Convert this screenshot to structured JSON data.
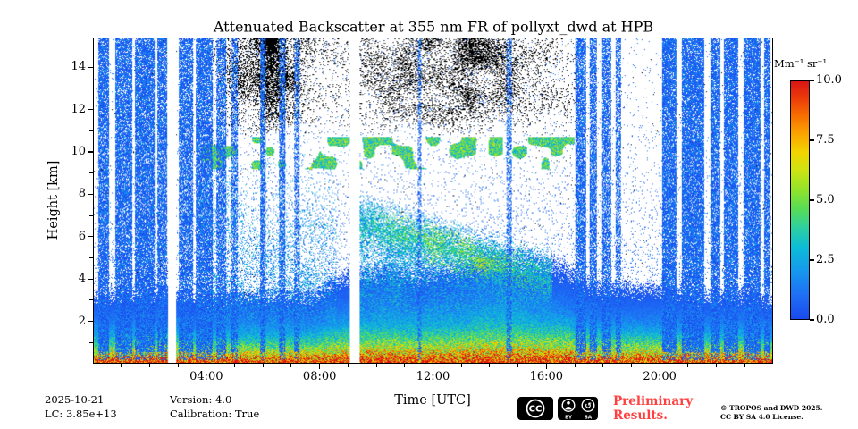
{
  "title": "Attenuated Backscatter at 355 nm FR of pollyxt_dwd at HPB",
  "axes": {
    "xlabel": "Time [UTC]",
    "ylabel": "Height [km]",
    "x_ticks": [
      "04:00",
      "08:00",
      "12:00",
      "16:00",
      "20:00"
    ],
    "y_ticks": [
      "2",
      "4",
      "6",
      "8",
      "10",
      "12",
      "14"
    ]
  },
  "colorbar": {
    "label": "Mm⁻¹ sr⁻¹",
    "ticks": [
      "10.0",
      "7.5",
      "5.0",
      "2.5",
      "0.0"
    ]
  },
  "footer": {
    "date": "2025-10-21",
    "lc": "LC: 3.85e+13",
    "version": "Version: 4.0",
    "calibration": "Calibration: True",
    "preliminary_line1": "Preliminary",
    "preliminary_line2": "Results.",
    "copyright_line1": "© TROPOS and DWD 2025.",
    "copyright_line2": "CC BY SA 4.0 License.",
    "cc_labels": {
      "cc": "CC",
      "by": "BY",
      "sa": "SA",
      "sa_arrow": "↺"
    }
  },
  "colors": {
    "preliminary_red": "#ff4040",
    "axis_black": "#000000",
    "background": "#ffffff"
  },
  "chart_data": {
    "type": "heatmap",
    "title": "Attenuated Backscatter at 355 nm FR of pollyxt_dwd at HPB",
    "x_axis": {
      "label": "Time [UTC]",
      "range_hours": [
        0,
        24
      ],
      "major_tick_hours": [
        4,
        8,
        12,
        16,
        20
      ]
    },
    "y_axis": {
      "label": "Height [km]",
      "range_km": [
        0,
        15.4
      ],
      "major_ticks_km": [
        2,
        4,
        6,
        8,
        10,
        12,
        14
      ]
    },
    "colorbar": {
      "label": "Mm⁻¹ sr⁻¹",
      "units": "Mm-1 sr-1",
      "range": [
        0,
        10
      ],
      "tick_values": [
        10.0,
        7.5,
        5.0,
        2.5,
        0.0
      ]
    },
    "colormap_stops": [
      [
        0,
        "#1a49ee"
      ],
      [
        0.1,
        "#1e6ff5"
      ],
      [
        0.2,
        "#1697ef"
      ],
      [
        0.3,
        "#0cbbd8"
      ],
      [
        0.38,
        "#2bcfa4"
      ],
      [
        0.46,
        "#55dc58"
      ],
      [
        0.54,
        "#8ee32c"
      ],
      [
        0.62,
        "#c9e414"
      ],
      [
        0.7,
        "#f2d500"
      ],
      [
        0.78,
        "#fba301"
      ],
      [
        0.86,
        "#f66b00"
      ],
      [
        0.93,
        "#ec3a0a"
      ],
      [
        1,
        "#d91515"
      ]
    ],
    "features": {
      "surface_layer": {
        "height_km": [
          0,
          1
        ],
        "value_range": [
          4,
          10
        ],
        "note": "strong yellow-orange backscatter near ground all day"
      },
      "boundary_layer": {
        "height_km": [
          1,
          3.5
        ],
        "value_range": [
          1,
          4
        ],
        "note": "green/cyan aerosol layer, deepest around midday"
      },
      "elevated_plume": {
        "t_hours": [
          9.3,
          16
        ],
        "height_km": [
          4.2,
          7.3
        ],
        "value_range": [
          2,
          8
        ],
        "note": "descending lofted aerosol layer with yellow-orange core"
      },
      "cloud_band_10km": {
        "t_hours": [
          3.8,
          17
        ],
        "height_km": [
          9.2,
          10.7
        ],
        "note": "broken green/yellow cloud returns near 10 km"
      },
      "dark_noise_band": {
        "t_hours": [
          4.2,
          17.2
        ],
        "height_km": [
          11,
          15.4
        ],
        "note": "dense black daytime background-noise speckle at top"
      },
      "data_gaps_hours": [
        [
          2.62,
          2.9
        ],
        [
          9.05,
          9.4
        ]
      ],
      "rain_cloud_columns": [
        [
          0.15,
          0.55,
          0.9
        ],
        [
          0.75,
          1.35,
          0.88
        ],
        [
          1.45,
          2.15,
          0.9
        ],
        [
          2.25,
          2.6,
          0.85
        ],
        [
          3.0,
          3.5,
          0.85
        ],
        [
          3.6,
          4.2,
          0.88
        ],
        [
          4.35,
          4.7,
          0.75
        ],
        [
          4.85,
          5.1,
          0.7
        ],
        [
          5.9,
          6.08,
          0.8
        ],
        [
          6.55,
          6.78,
          0.75
        ],
        [
          7.1,
          7.28,
          0.65
        ],
        [
          11.45,
          11.58,
          0.55
        ],
        [
          14.6,
          14.8,
          0.6
        ],
        [
          17.05,
          17.4,
          0.85
        ],
        [
          17.55,
          17.8,
          0.8
        ],
        [
          18.0,
          18.3,
          0.8
        ],
        [
          18.45,
          18.65,
          0.7
        ],
        [
          20.1,
          20.6,
          0.92
        ],
        [
          20.8,
          21.6,
          0.92
        ],
        [
          21.8,
          22.15,
          0.88
        ],
        [
          22.3,
          22.8,
          0.9
        ],
        [
          23.0,
          23.6,
          0.92
        ],
        [
          23.7,
          23.95,
          0.85
        ]
      ]
    }
  }
}
